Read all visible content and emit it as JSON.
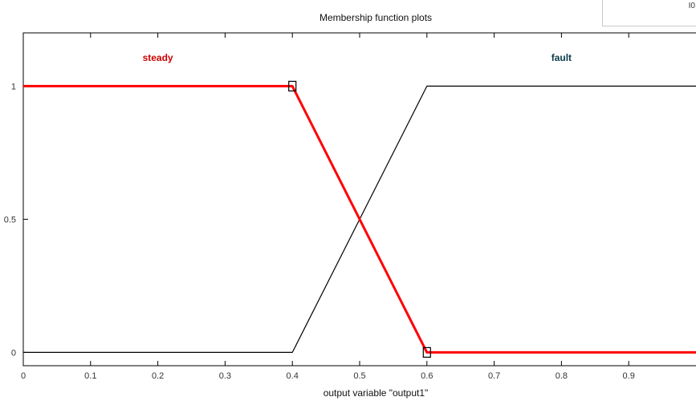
{
  "window": {
    "title": "Membership function plots",
    "corner_fragment": "I0"
  },
  "chart_data": {
    "type": "line",
    "title": "Membership function plots",
    "xlabel": "output variable \"output1\"",
    "ylabel": "",
    "xlim": [
      0,
      1
    ],
    "ylim": [
      -0.05,
      1.2
    ],
    "x_ticks": [
      "0",
      "0.1",
      "0.2",
      "0.3",
      "0.4",
      "0.5",
      "0.6",
      "0.7",
      "0.8",
      "0.9"
    ],
    "x_tick_values": [
      0,
      0.1,
      0.2,
      0.3,
      0.4,
      0.5,
      0.6,
      0.7,
      0.8,
      0.9
    ],
    "y_ticks": [
      "0",
      "0.5",
      "1"
    ],
    "y_tick_values": [
      0,
      0.5,
      1
    ],
    "grid": false,
    "series": [
      {
        "name": "steady",
        "color": "#ff0000",
        "selected": true,
        "x": [
          0,
          0.4,
          0.6,
          1.0
        ],
        "y": [
          1,
          1,
          0,
          0
        ]
      },
      {
        "name": "fault",
        "color": "#000000",
        "selected": false,
        "x": [
          0,
          0.4,
          0.6,
          1.0
        ],
        "y": [
          0,
          0,
          1,
          1
        ]
      }
    ],
    "labels": [
      {
        "text": "steady",
        "x": 0.2,
        "color": "#cc0000"
      },
      {
        "text": "fault",
        "x": 0.8,
        "color": "#0a3a4a"
      }
    ],
    "handles": [
      {
        "x": 0.4,
        "y": 1
      },
      {
        "x": 0.6,
        "y": 0
      }
    ]
  }
}
